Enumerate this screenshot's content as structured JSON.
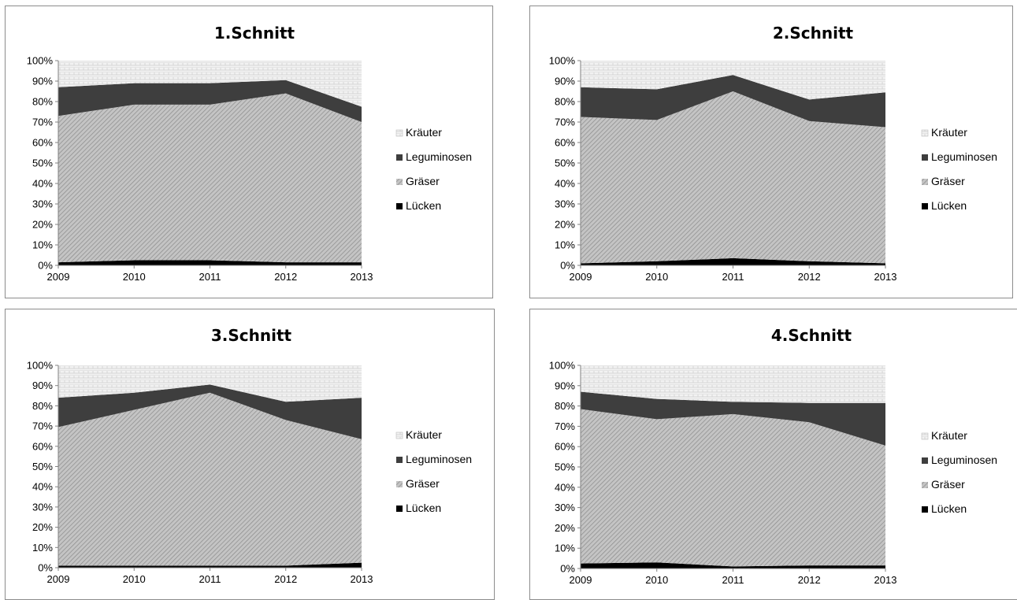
{
  "chart_data": [
    {
      "type": "area",
      "stacked": true,
      "title": "1.Schnitt",
      "x": [
        "2009",
        "2010",
        "2011",
        "2012",
        "2013"
      ],
      "y_ticks": [
        "0%",
        "10%",
        "20%",
        "30%",
        "40%",
        "50%",
        "60%",
        "70%",
        "80%",
        "90%",
        "100%"
      ],
      "ylim": [
        0,
        100
      ],
      "legend_position": "right",
      "legend": [
        "Kräuter",
        "Leguminosen",
        "Gräser",
        "Lücken"
      ],
      "series": [
        {
          "name": "Lücken",
          "values": [
            1.5,
            2.5,
            2.5,
            1.5,
            1.5
          ]
        },
        {
          "name": "Gräser",
          "values": [
            71.5,
            76.0,
            76.0,
            82.5,
            68.5
          ]
        },
        {
          "name": "Leguminosen",
          "values": [
            14.0,
            10.5,
            10.5,
            6.5,
            7.5
          ]
        },
        {
          "name": "Kräuter",
          "values": [
            13.0,
            11.0,
            11.0,
            9.5,
            22.5
          ]
        }
      ]
    },
    {
      "type": "area",
      "stacked": true,
      "title": "2.Schnitt",
      "x": [
        "2009",
        "2010",
        "2011",
        "2012",
        "2013"
      ],
      "y_ticks": [
        "0%",
        "10%",
        "20%",
        "30%",
        "40%",
        "50%",
        "60%",
        "70%",
        "80%",
        "90%",
        "100%"
      ],
      "ylim": [
        0,
        100
      ],
      "legend_position": "right",
      "legend": [
        "Kräuter",
        "Leguminosen",
        "Gräser",
        "Lücken"
      ],
      "series": [
        {
          "name": "Lücken",
          "values": [
            1.0,
            2.0,
            3.5,
            2.0,
            1.0
          ]
        },
        {
          "name": "Gräser",
          "values": [
            71.5,
            69.0,
            81.5,
            68.5,
            66.5
          ]
        },
        {
          "name": "Leguminosen",
          "values": [
            14.5,
            15.0,
            8.0,
            10.5,
            17.0
          ]
        },
        {
          "name": "Kräuter",
          "values": [
            13.0,
            14.0,
            7.0,
            19.0,
            15.5
          ]
        }
      ]
    },
    {
      "type": "area",
      "stacked": true,
      "title": "3.Schnitt",
      "x": [
        "2009",
        "2010",
        "2011",
        "2012",
        "2013"
      ],
      "y_ticks": [
        "0%",
        "10%",
        "20%",
        "30%",
        "40%",
        "50%",
        "60%",
        "70%",
        "80%",
        "90%",
        "100%"
      ],
      "ylim": [
        0,
        100
      ],
      "legend_position": "right",
      "legend": [
        "Kräuter",
        "Leguminosen",
        "Gräser",
        "Lücken"
      ],
      "series": [
        {
          "name": "Lücken",
          "values": [
            1.0,
            1.0,
            1.0,
            1.0,
            2.5
          ]
        },
        {
          "name": "Gräser",
          "values": [
            68.5,
            77.0,
            85.5,
            72.0,
            61.0
          ]
        },
        {
          "name": "Leguminosen",
          "values": [
            14.5,
            8.5,
            4.0,
            9.0,
            20.5
          ]
        },
        {
          "name": "Kräuter",
          "values": [
            16.0,
            13.5,
            9.5,
            18.0,
            16.0
          ]
        }
      ]
    },
    {
      "type": "area",
      "stacked": true,
      "title": "4.Schnitt",
      "x": [
        "2009",
        "2010",
        "2011",
        "2012",
        "2013"
      ],
      "y_ticks": [
        "0%",
        "10%",
        "20%",
        "30%",
        "40%",
        "50%",
        "60%",
        "70%",
        "80%",
        "90%",
        "100%"
      ],
      "ylim": [
        0,
        100
      ],
      "legend_position": "right",
      "legend": [
        "Kräuter",
        "Leguminosen",
        "Gräser",
        "Lücken"
      ],
      "series": [
        {
          "name": "Lücken",
          "values": [
            2.5,
            3.0,
            1.0,
            1.5,
            1.5
          ]
        },
        {
          "name": "Gräser",
          "values": [
            76.0,
            70.5,
            75.0,
            70.5,
            59.0
          ]
        },
        {
          "name": "Leguminosen",
          "values": [
            8.5,
            10.0,
            6.0,
            9.5,
            21.0
          ]
        },
        {
          "name": "Kräuter",
          "values": [
            13.0,
            16.5,
            18.0,
            18.5,
            18.5
          ]
        }
      ]
    }
  ]
}
